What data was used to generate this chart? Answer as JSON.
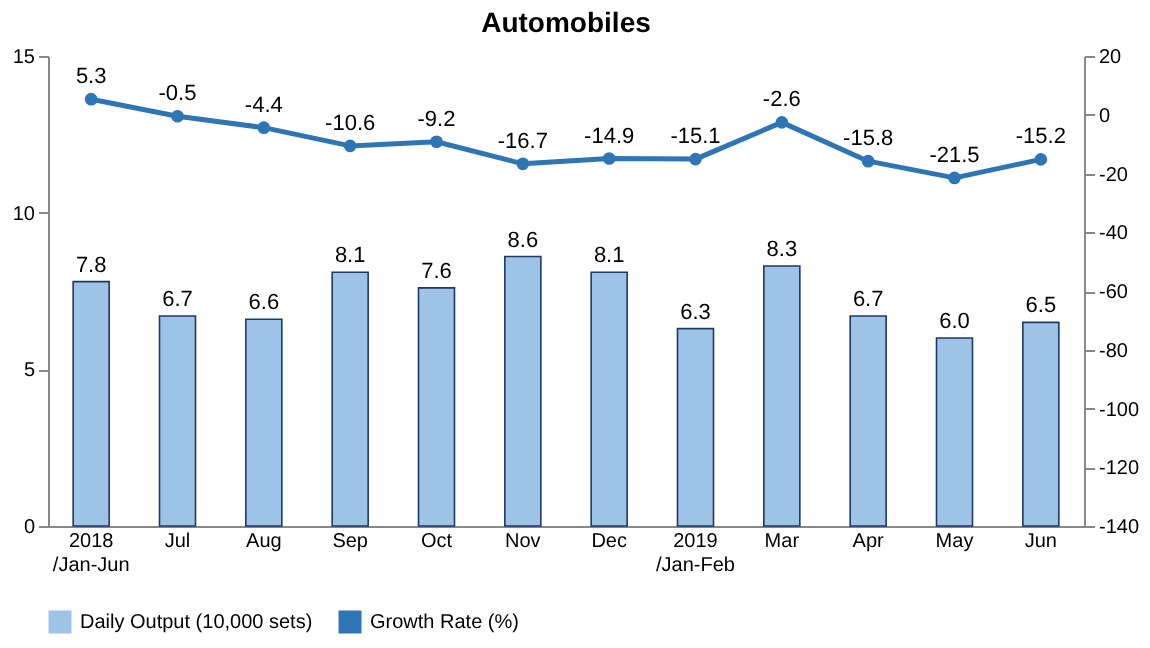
{
  "chart_data": {
    "type": "bar",
    "title": "Automobiles",
    "categories": [
      "2018\n/Jan-Jun",
      "Jul",
      "Aug",
      "Sep",
      "Oct",
      "Nov",
      "Dec",
      "2019\n/Jan-Feb",
      "Mar",
      "Apr",
      "May",
      "Jun"
    ],
    "series": [
      {
        "name": "Daily Output (10,000 sets)",
        "color": "#9dc3e6",
        "values": [
          7.8,
          6.7,
          6.6,
          8.1,
          7.6,
          8.6,
          8.1,
          6.3,
          8.3,
          6.7,
          6.0,
          6.5
        ],
        "value_labels": [
          "7.8",
          "6.7",
          "6.6",
          "8.1",
          "7.6",
          "8.6",
          "8.1",
          "6.3",
          "8.3",
          "6.7",
          "6.0",
          "6.5"
        ]
      },
      {
        "name": "Growth Rate (%)",
        "type": "line",
        "axis": "y2",
        "color": "#2e75b6",
        "values": [
          5.3,
          -0.5,
          -4.4,
          -10.6,
          -9.2,
          -16.7,
          -14.9,
          -15.1,
          -2.6,
          -15.8,
          -21.5,
          -15.2
        ],
        "value_labels": [
          "5.3",
          "-0.5",
          "-4.4",
          "-10.6",
          "-9.2",
          "-16.7",
          "-14.9",
          "-15.1",
          "-2.6",
          "-15.8",
          "-21.5",
          "-15.2"
        ]
      }
    ],
    "ylim": [
      0,
      15
    ],
    "yticks": [
      0,
      5,
      10,
      15
    ],
    "y2lim": [
      -140,
      20
    ],
    "y2ticks": [
      -140,
      -120,
      -100,
      -80,
      -60,
      -40,
      -20,
      0,
      20
    ],
    "legend": "bottom",
    "marker": "circle",
    "line_style": "solid",
    "grid": false
  }
}
